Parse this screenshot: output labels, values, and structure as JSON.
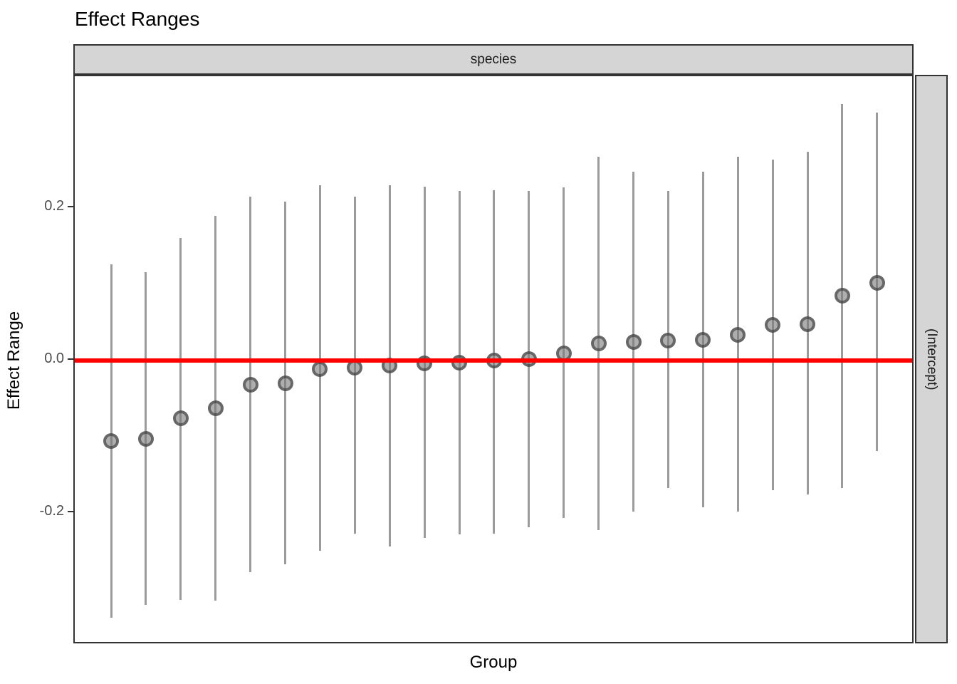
{
  "chart_data": {
    "type": "pointrange",
    "title": "Effect Ranges",
    "facet_strip_label": "species",
    "right_strip_label": "(Intercept)",
    "xlabel": "Group",
    "ylabel": "Effect Range",
    "y_ticks": [
      {
        "label": "0.2",
        "value": 0.2
      },
      {
        "label": "0.0",
        "value": 0.0
      },
      {
        "label": "-0.2",
        "value": -0.2
      }
    ],
    "ylim": [
      -0.375,
      0.373
    ],
    "grid": "off",
    "legend": "none",
    "x_tick_labels": "none",
    "reference_line": {
      "y": 0.0,
      "color": "#ff0000"
    },
    "colors": {
      "bar": "#9b9b9b",
      "point_ring": "#2d2d2d",
      "point_fill": "#787878",
      "strip_fill": "#d5d5d5",
      "panel_border": "#333333"
    },
    "series": [
      {
        "group": 1,
        "estimate": -0.106,
        "low": -0.337,
        "high": 0.126
      },
      {
        "group": 2,
        "estimate": -0.103,
        "low": -0.321,
        "high": 0.116
      },
      {
        "group": 3,
        "estimate": -0.076,
        "low": -0.314,
        "high": 0.161
      },
      {
        "group": 4,
        "estimate": -0.063,
        "low": -0.315,
        "high": 0.19
      },
      {
        "group": 5,
        "estimate": -0.032,
        "low": -0.278,
        "high": 0.215
      },
      {
        "group": 6,
        "estimate": -0.03,
        "low": -0.267,
        "high": 0.208
      },
      {
        "group": 7,
        "estimate": -0.011,
        "low": -0.25,
        "high": 0.23
      },
      {
        "group": 8,
        "estimate": -0.009,
        "low": -0.227,
        "high": 0.215
      },
      {
        "group": 9,
        "estimate": -0.007,
        "low": -0.244,
        "high": 0.23
      },
      {
        "group": 10,
        "estimate": -0.004,
        "low": -0.233,
        "high": 0.228
      },
      {
        "group": 11,
        "estimate": -0.003,
        "low": -0.228,
        "high": 0.222
      },
      {
        "group": 12,
        "estimate": 0.0,
        "low": -0.227,
        "high": 0.223
      },
      {
        "group": 13,
        "estimate": 0.002,
        "low": -0.219,
        "high": 0.222
      },
      {
        "group": 14,
        "estimate": 0.009,
        "low": -0.207,
        "high": 0.227
      },
      {
        "group": 15,
        "estimate": 0.022,
        "low": -0.222,
        "high": 0.267
      },
      {
        "group": 16,
        "estimate": 0.024,
        "low": -0.198,
        "high": 0.248
      },
      {
        "group": 17,
        "estimate": 0.026,
        "low": -0.167,
        "high": 0.222
      },
      {
        "group": 18,
        "estimate": 0.027,
        "low": -0.193,
        "high": 0.248
      },
      {
        "group": 19,
        "estimate": 0.034,
        "low": -0.198,
        "high": 0.267
      },
      {
        "group": 20,
        "estimate": 0.047,
        "low": -0.17,
        "high": 0.264
      },
      {
        "group": 21,
        "estimate": 0.048,
        "low": -0.176,
        "high": 0.274
      },
      {
        "group": 22,
        "estimate": 0.085,
        "low": -0.167,
        "high": 0.336
      },
      {
        "group": 23,
        "estimate": 0.102,
        "low": -0.119,
        "high": 0.325
      }
    ]
  }
}
